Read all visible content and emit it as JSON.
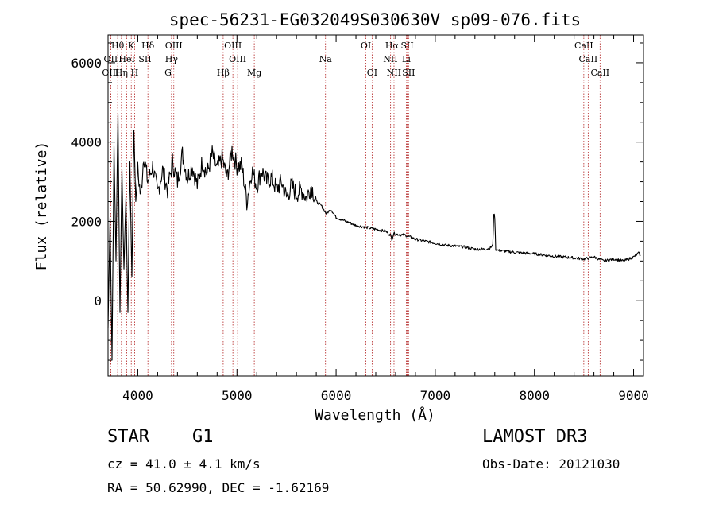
{
  "chart_data": {
    "type": "line",
    "title": "spec-56231-EG032049S030630V_sp09-076.fits",
    "xlabel": "Wavelength (Å)",
    "ylabel": "Flux (relative)",
    "xlim": [
      3700,
      9100
    ],
    "ylim": [
      -1900,
      6700
    ],
    "x_ticks": [
      4000,
      5000,
      6000,
      7000,
      8000,
      9000
    ],
    "y_ticks": [
      0,
      2000,
      4000,
      6000
    ],
    "grid": false,
    "series": [
      {
        "name": "flux",
        "x": [
          3700,
          3720,
          3740,
          3760,
          3780,
          3800,
          3820,
          3840,
          3860,
          3880,
          3900,
          3920,
          3940,
          3960,
          3980,
          4000,
          4030,
          4060,
          4100,
          4150,
          4200,
          4250,
          4300,
          4350,
          4400,
          4450,
          4500,
          4550,
          4600,
          4650,
          4700,
          4750,
          4800,
          4850,
          4900,
          4950,
          5000,
          5050,
          5100,
          5150,
          5200,
          5250,
          5300,
          5350,
          5400,
          5450,
          5500,
          5550,
          5600,
          5650,
          5700,
          5750,
          5800,
          5850,
          5900,
          5950,
          6000,
          6100,
          6200,
          6300,
          6400,
          6500,
          6550,
          6563,
          6580,
          6600,
          6700,
          6800,
          6900,
          7000,
          7100,
          7200,
          7300,
          7400,
          7500,
          7550,
          7580,
          7590,
          7600,
          7610,
          7620,
          7650,
          7700,
          7800,
          7900,
          8000,
          8100,
          8200,
          8300,
          8400,
          8500,
          8600,
          8650,
          8700,
          8800,
          8900,
          9000,
          9050,
          9070
        ],
        "values": [
          -700,
          2100,
          -1500,
          3900,
          1000,
          4700,
          -300,
          3300,
          800,
          2600,
          -300,
          3500,
          600,
          4300,
          2500,
          3300,
          2600,
          3700,
          3000,
          3400,
          2700,
          3300,
          2800,
          3500,
          3000,
          3700,
          3100,
          3400,
          2900,
          3500,
          3200,
          3700,
          3300,
          3600,
          3100,
          3800,
          3400,
          3400,
          2500,
          3300,
          2900,
          3300,
          3000,
          3100,
          2800,
          3000,
          2600,
          2900,
          2700,
          2800,
          2600,
          2900,
          2500,
          2400,
          2200,
          2300,
          2100,
          2000,
          1900,
          1850,
          1800,
          1750,
          1650,
          1550,
          1700,
          1680,
          1650,
          1550,
          1500,
          1450,
          1400,
          1380,
          1350,
          1300,
          1300,
          1320,
          1400,
          2200,
          2100,
          1300,
          1280,
          1260,
          1250,
          1220,
          1200,
          1180,
          1150,
          1120,
          1100,
          1080,
          1050,
          1100,
          1050,
          1000,
          1050,
          1000,
          1100,
          1200,
          1150
        ]
      }
    ],
    "line_markers": [
      {
        "label": "Hθ",
        "wavelength": 3797,
        "row": 1
      },
      {
        "label": "K",
        "wavelength": 3934,
        "row": 1
      },
      {
        "label": "Hδ",
        "wavelength": 4102,
        "row": 1
      },
      {
        "label": "OIII",
        "wavelength": 4363,
        "row": 1
      },
      {
        "label": "OIII",
        "wavelength": 4959,
        "row": 1
      },
      {
        "label": "OI",
        "wavelength": 6300,
        "row": 1
      },
      {
        "label": "Hα",
        "wavelength": 6563,
        "row": 1
      },
      {
        "label": "SII",
        "wavelength": 6717,
        "row": 1
      },
      {
        "label": "CaII",
        "wavelength": 8498,
        "row": 1
      },
      {
        "label": "OII",
        "wavelength": 3727,
        "row": 2
      },
      {
        "label": "HeI",
        "wavelength": 3889,
        "row": 2
      },
      {
        "label": "SII",
        "wavelength": 4072,
        "row": 2
      },
      {
        "label": "Hγ",
        "wavelength": 4340,
        "row": 2
      },
      {
        "label": "OIII",
        "wavelength": 5007,
        "row": 2
      },
      {
        "label": "Na",
        "wavelength": 5893,
        "row": 2
      },
      {
        "label": "NII",
        "wavelength": 6548,
        "row": 2
      },
      {
        "label": "Li",
        "wavelength": 6708,
        "row": 2
      },
      {
        "label": "CaII",
        "wavelength": 8542,
        "row": 2
      },
      {
        "label": "OIII",
        "wavelength": 3727,
        "row": 3
      },
      {
        "label": "Hη",
        "wavelength": 3835,
        "row": 3
      },
      {
        "label": "H",
        "wavelength": 3968,
        "row": 3
      },
      {
        "label": "G",
        "wavelength": 4305,
        "row": 3
      },
      {
        "label": "Hβ",
        "wavelength": 4861,
        "row": 3
      },
      {
        "label": "Mg",
        "wavelength": 5175,
        "row": 3
      },
      {
        "label": "OI",
        "wavelength": 6363,
        "row": 3
      },
      {
        "label": "NII",
        "wavelength": 6584,
        "row": 3
      },
      {
        "label": "SII",
        "wavelength": 6731,
        "row": 3
      },
      {
        "label": "CaII",
        "wavelength": 8662,
        "row": 3
      }
    ]
  },
  "info": {
    "object_class": "STAR",
    "subclass": "G1",
    "survey": "LAMOST DR3",
    "velocity": "cz = 41.0 ± 4.1 km/s",
    "obs_date": "Obs-Date: 20121030",
    "coords": "RA =  50.62990, DEC =  -1.62169"
  },
  "colors": {
    "line": "#000000",
    "marker": "#b22222"
  }
}
